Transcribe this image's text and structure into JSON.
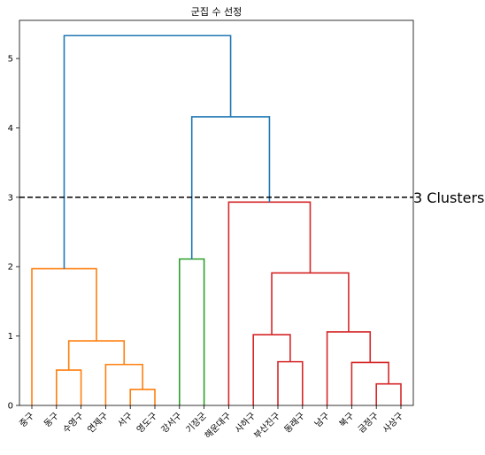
{
  "chart_data": {
    "type": "dendrogram",
    "title": "군집 수 선정",
    "xlabel": "",
    "ylabel": "",
    "ylim": [
      0,
      5.55
    ],
    "yticks": [
      0,
      1,
      2,
      3,
      4,
      5
    ],
    "leaves": [
      "중구",
      "동구",
      "수영구",
      "연제구",
      "서구",
      "영도구",
      "강서구",
      "기장군",
      "해운대구",
      "사하구",
      "부산진구",
      "동래구",
      "남구",
      "북구",
      "금정구",
      "사상구"
    ],
    "threshold": {
      "y": 3.0,
      "label": "3 Clusters",
      "color": "#000000",
      "style": "dashed"
    },
    "colors": {
      "cluster1": "#ff7f0e",
      "cluster2": "#2ca02c",
      "cluster3": "#d62728",
      "above_threshold": "#1f77b4"
    },
    "merges": [
      {
        "left": "leaf:4",
        "right": "leaf:5",
        "height": 0.23,
        "color": "cluster1"
      },
      {
        "left": "leaf:1",
        "right": "leaf:2",
        "height": 0.51,
        "color": "cluster1"
      },
      {
        "left": "leaf:3",
        "right": "merge:0",
        "height": 0.59,
        "color": "cluster1"
      },
      {
        "left": "merge:1",
        "right": "merge:2",
        "height": 0.93,
        "color": "cluster1"
      },
      {
        "left": "leaf:0",
        "right": "merge:3",
        "height": 1.97,
        "color": "cluster1"
      },
      {
        "left": "leaf:6",
        "right": "leaf:7",
        "height": 2.11,
        "color": "cluster2"
      },
      {
        "left": "leaf:10",
        "right": "leaf:11",
        "height": 0.63,
        "color": "cluster3"
      },
      {
        "left": "leaf:9",
        "right": "merge:6",
        "height": 1.02,
        "color": "cluster3"
      },
      {
        "left": "leaf:14",
        "right": "leaf:15",
        "height": 0.31,
        "color": "cluster3"
      },
      {
        "left": "leaf:13",
        "right": "merge:8",
        "height": 0.62,
        "color": "cluster3"
      },
      {
        "left": "leaf:12",
        "right": "merge:9",
        "height": 1.06,
        "color": "cluster3"
      },
      {
        "left": "merge:7",
        "right": "merge:10",
        "height": 1.91,
        "color": "cluster3"
      },
      {
        "left": "leaf:8",
        "right": "merge:11",
        "height": 2.93,
        "color": "cluster3"
      },
      {
        "left": "merge:5",
        "right": "merge:12",
        "height": 4.16,
        "color": "above_threshold"
      },
      {
        "left": "merge:4",
        "right": "merge:13",
        "height": 5.33,
        "color": "above_threshold"
      }
    ]
  }
}
